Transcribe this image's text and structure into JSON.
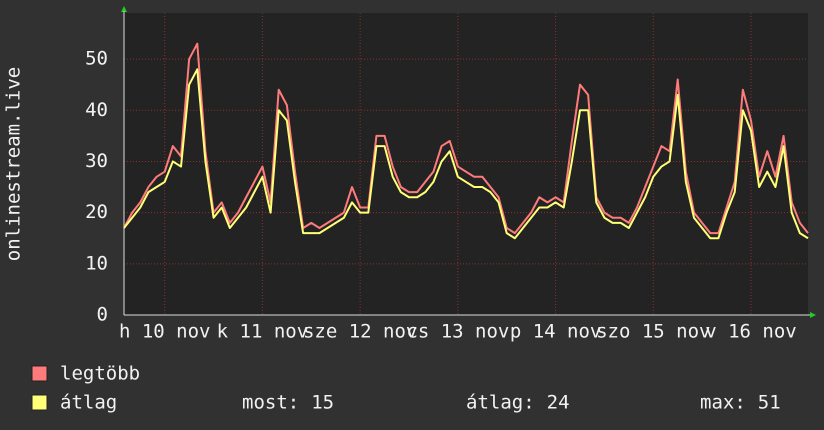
{
  "chart_data": {
    "type": "line",
    "ylabel": "onlinestream.live",
    "x": [
      0,
      2,
      4,
      6,
      8,
      10,
      12,
      14,
      16,
      18,
      20,
      22,
      24,
      26,
      28,
      30,
      32,
      34,
      36,
      38,
      40,
      42,
      44,
      46,
      48,
      50,
      52,
      54,
      56,
      58,
      60,
      62,
      64,
      66,
      68,
      70,
      72,
      74,
      76,
      78,
      80,
      82,
      84,
      86,
      88,
      90,
      92,
      94,
      96,
      98,
      100,
      102,
      104,
      106,
      108,
      110,
      112,
      114,
      116,
      118,
      120,
      122,
      124,
      126,
      128,
      130,
      132,
      134,
      136,
      138,
      140,
      142,
      144,
      146,
      148,
      150,
      152,
      154,
      156,
      158,
      160,
      162,
      164,
      166,
      168
    ],
    "xlim": [
      0,
      168
    ],
    "xticks": [
      {
        "value": 10,
        "label": "h 10 nov"
      },
      {
        "value": 34,
        "label": "k 11 nov"
      },
      {
        "value": 58,
        "label": "sze 12 nov"
      },
      {
        "value": 82,
        "label": "cs 13 nov"
      },
      {
        "value": 106,
        "label": "p 14 nov"
      },
      {
        "value": 130,
        "label": "szo 15 nov"
      },
      {
        "value": 154,
        "label": "v 16 nov"
      }
    ],
    "ylim": [
      0,
      59
    ],
    "yticks": [
      0,
      10,
      20,
      30,
      40,
      50
    ],
    "grid": true,
    "series": [
      {
        "name": "legtöbb",
        "color": "#ff7b7b",
        "values": [
          17,
          20,
          22,
          25,
          27,
          28,
          33,
          31,
          50,
          53,
          32,
          20,
          22,
          18,
          20,
          23,
          26,
          29,
          22,
          44,
          41,
          28,
          17,
          18,
          17,
          18,
          19,
          20,
          25,
          21,
          21,
          35,
          35,
          29,
          25,
          24,
          24,
          26,
          28,
          33,
          34,
          29,
          28,
          27,
          27,
          25,
          23,
          17,
          16,
          18,
          20,
          23,
          22,
          23,
          22,
          34,
          45,
          43,
          23,
          20,
          19,
          19,
          18,
          21,
          25,
          29,
          33,
          32,
          46,
          28,
          20,
          18,
          16,
          16,
          21,
          26,
          44,
          38,
          27,
          32,
          27,
          35,
          22,
          18,
          16
        ]
      },
      {
        "name": "átlag",
        "color": "#ffff78",
        "values": [
          17,
          19,
          21,
          24,
          25,
          26,
          30,
          29,
          45,
          48,
          30,
          19,
          21,
          17,
          19,
          21,
          24,
          27,
          20,
          40,
          38,
          26,
          16,
          16,
          16,
          17,
          18,
          19,
          22,
          20,
          20,
          33,
          33,
          27,
          24,
          23,
          23,
          24,
          26,
          30,
          32,
          27,
          26,
          25,
          25,
          24,
          22,
          16,
          15,
          17,
          19,
          21,
          21,
          22,
          21,
          30,
          40,
          40,
          22,
          19,
          18,
          18,
          17,
          20,
          23,
          27,
          29,
          30,
          43,
          26,
          19,
          17,
          15,
          15,
          20,
          24,
          40,
          36,
          25,
          28,
          25,
          33,
          20,
          16,
          15
        ]
      }
    ],
    "stats": [
      {
        "label": "most:",
        "value": 15
      },
      {
        "label": "átlag:",
        "value": 24
      },
      {
        "label": "max:",
        "value": 51
      }
    ]
  }
}
